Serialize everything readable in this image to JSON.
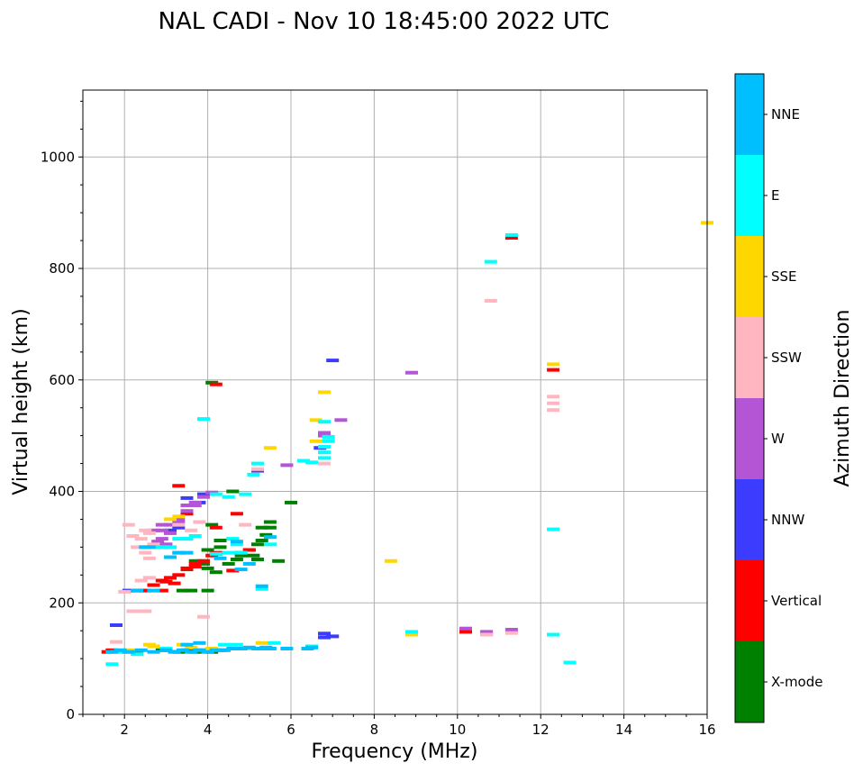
{
  "colors": {
    "X-mode": "#008000",
    "Vertical": "#ff0000",
    "NNW": "#3c3cff",
    "W": "#b455d6",
    "SSW": "#ffb6c1",
    "SSE": "#ffd700",
    "E": "#00ffff",
    "NNE": "#00bfff"
  },
  "chart_data": {
    "type": "scatter",
    "title": "NAL CADI - Nov 10 18:45:00 2022 UTC",
    "xlabel": "Frequency (MHz)",
    "ylabel": "Virtual height (km)",
    "xlim": [
      1,
      16
    ],
    "ylim": [
      0,
      1120
    ],
    "xticks": [
      2,
      4,
      6,
      8,
      10,
      12,
      14,
      16
    ],
    "yticks": [
      0,
      200,
      400,
      600,
      800,
      1000
    ],
    "grid": true,
    "colorbar": {
      "title": "Azimuth Direction",
      "categories": [
        "X-mode",
        "Vertical",
        "NNW",
        "W",
        "SSW",
        "SSE",
        "E",
        "NNE"
      ]
    },
    "series": [
      {
        "name": "X-mode",
        "points": [
          [
            3.3,
            112
          ],
          [
            3.5,
            115
          ],
          [
            3.7,
            112
          ],
          [
            3.9,
            115
          ],
          [
            4.1,
            112
          ],
          [
            4.3,
            115
          ],
          [
            2.3,
            112
          ],
          [
            2.9,
            115
          ],
          [
            4.2,
            255
          ],
          [
            4.0,
            262
          ],
          [
            4.5,
            270
          ],
          [
            4.7,
            278
          ],
          [
            4.8,
            285
          ],
          [
            5.0,
            295
          ],
          [
            5.2,
            305
          ],
          [
            5.3,
            312
          ],
          [
            5.4,
            322
          ],
          [
            5.5,
            335
          ],
          [
            5.5,
            345
          ],
          [
            4.2,
            288
          ],
          [
            4.0,
            295
          ],
          [
            3.9,
            275
          ],
          [
            3.7,
            275
          ],
          [
            3.5,
            260
          ],
          [
            4.3,
            300
          ],
          [
            4.3,
            312
          ],
          [
            4.8,
            290
          ],
          [
            5.1,
            285
          ],
          [
            5.3,
            335
          ],
          [
            4.0,
            222
          ],
          [
            3.6,
            222
          ],
          [
            3.4,
            222
          ],
          [
            4.1,
            340
          ],
          [
            4.1,
            595
          ],
          [
            5.7,
            275
          ],
          [
            6.0,
            380
          ],
          [
            4.6,
            400
          ],
          [
            5.2,
            278
          ],
          [
            3.9,
            270
          ]
        ]
      },
      {
        "name": "Vertical",
        "points": [
          [
            2.3,
            222
          ],
          [
            2.5,
            222
          ],
          [
            2.9,
            222
          ],
          [
            2.9,
            240
          ],
          [
            3.1,
            245
          ],
          [
            3.3,
            250
          ],
          [
            3.5,
            262
          ],
          [
            3.7,
            270
          ],
          [
            3.9,
            275
          ],
          [
            4.1,
            285
          ],
          [
            4.2,
            290
          ],
          [
            2.7,
            232
          ],
          [
            3.2,
            235
          ],
          [
            1.7,
            115
          ],
          [
            2.3,
            112
          ],
          [
            3.6,
            113
          ],
          [
            4.7,
            360
          ],
          [
            4.2,
            335
          ],
          [
            4.2,
            592
          ],
          [
            3.5,
            360
          ],
          [
            3.3,
            410
          ],
          [
            4.6,
            258
          ],
          [
            5.0,
            295
          ],
          [
            3.7,
            265
          ],
          [
            3.0,
            238
          ],
          [
            11.3,
            855
          ],
          [
            12.3,
            618
          ],
          [
            10.2,
            148
          ],
          [
            10.7,
            145
          ],
          [
            1.6,
            112
          ]
        ]
      },
      {
        "name": "NNW",
        "points": [
          [
            6.8,
            138
          ],
          [
            6.8,
            145
          ],
          [
            7.0,
            140
          ],
          [
            6.7,
            478
          ],
          [
            7.0,
            635
          ],
          [
            5.2,
            437
          ],
          [
            3.1,
            330
          ],
          [
            3.3,
            335
          ],
          [
            2.1,
            222
          ],
          [
            3.9,
            395
          ],
          [
            1.8,
            160
          ],
          [
            3.5,
            388
          ],
          [
            3.8,
            380
          ]
        ]
      },
      {
        "name": "W",
        "points": [
          [
            2.7,
            330
          ],
          [
            2.9,
            330
          ],
          [
            3.1,
            325
          ],
          [
            2.9,
            340
          ],
          [
            3.1,
            340
          ],
          [
            3.3,
            345
          ],
          [
            2.9,
            315
          ],
          [
            3.0,
            305
          ],
          [
            3.3,
            350
          ],
          [
            3.5,
            365
          ],
          [
            3.5,
            375
          ],
          [
            3.7,
            375
          ],
          [
            3.7,
            380
          ],
          [
            3.9,
            390
          ],
          [
            4.1,
            398
          ],
          [
            2.8,
            310
          ],
          [
            5.9,
            447
          ],
          [
            7.2,
            528
          ],
          [
            6.8,
            500
          ],
          [
            8.9,
            613
          ],
          [
            11.3,
            152
          ],
          [
            10.2,
            154
          ],
          [
            6.8,
            505
          ],
          [
            10.7,
            148
          ]
        ]
      },
      {
        "name": "SSW",
        "points": [
          [
            2.2,
            320
          ],
          [
            2.3,
            300
          ],
          [
            2.4,
            315
          ],
          [
            2.5,
            330
          ],
          [
            2.6,
            325
          ],
          [
            2.5,
            300
          ],
          [
            2.6,
            280
          ],
          [
            2.5,
            290
          ],
          [
            2.7,
            305
          ],
          [
            2.2,
            185
          ],
          [
            2.5,
            185
          ],
          [
            2.4,
            240
          ],
          [
            2.6,
            245
          ],
          [
            1.8,
            130
          ],
          [
            3.9,
            175
          ],
          [
            6.8,
            470
          ],
          [
            6.8,
            450
          ],
          [
            6.9,
            495
          ],
          [
            10.8,
            742
          ],
          [
            12.3,
            570
          ],
          [
            12.3,
            558
          ],
          [
            12.3,
            546
          ],
          [
            11.3,
            146
          ],
          [
            10.7,
            143
          ],
          [
            3.6,
            330
          ],
          [
            3.8,
            345
          ],
          [
            3.3,
            340
          ],
          [
            2.0,
            220
          ],
          [
            5.2,
            440
          ],
          [
            4.9,
            340
          ],
          [
            2.1,
            340
          ]
        ]
      },
      {
        "name": "SSE",
        "points": [
          [
            3.1,
            350
          ],
          [
            3.3,
            355
          ],
          [
            2.9,
            300
          ],
          [
            2.6,
            125
          ],
          [
            3.4,
            125
          ],
          [
            5.5,
            478
          ],
          [
            6.6,
            490
          ],
          [
            6.6,
            528
          ],
          [
            6.8,
            578
          ],
          [
            8.4,
            275
          ],
          [
            12.3,
            628
          ],
          [
            8.9,
            143
          ],
          [
            16,
            882
          ],
          [
            1.8,
            112
          ],
          [
            5.3,
            128
          ],
          [
            2.1,
            115
          ],
          [
            4.1,
            118
          ],
          [
            3.6,
            120
          ],
          [
            4.9,
            118
          ],
          [
            2.7,
            122
          ]
        ]
      },
      {
        "name": "E",
        "points": [
          [
            3.9,
            530
          ],
          [
            5.2,
            450
          ],
          [
            5.1,
            430
          ],
          [
            6.3,
            455
          ],
          [
            6.5,
            452
          ],
          [
            6.8,
            460
          ],
          [
            6.8,
            470
          ],
          [
            6.8,
            480
          ],
          [
            6.9,
            490
          ],
          [
            6.9,
            498
          ],
          [
            6.8,
            525
          ],
          [
            4.2,
            395
          ],
          [
            4.5,
            390
          ],
          [
            4.9,
            395
          ],
          [
            3.5,
            315
          ],
          [
            3.7,
            320
          ],
          [
            3.3,
            315
          ],
          [
            3.1,
            300
          ],
          [
            2.9,
            300
          ],
          [
            3.3,
            290
          ],
          [
            4.6,
            315
          ],
          [
            4.7,
            305
          ],
          [
            4.8,
            290
          ],
          [
            12.3,
            332
          ],
          [
            12.3,
            143
          ],
          [
            12.7,
            93
          ],
          [
            11.3,
            860
          ],
          [
            10.8,
            812
          ],
          [
            8.9,
            148
          ],
          [
            2.0,
            112
          ],
          [
            2.3,
            108
          ],
          [
            3.0,
            118
          ],
          [
            5.3,
            225
          ],
          [
            1.7,
            90
          ],
          [
            4.4,
            125
          ],
          [
            4.7,
            125
          ],
          [
            5.6,
            128
          ],
          [
            6.5,
            122
          ],
          [
            4.5,
            290
          ],
          [
            4.2,
            288
          ],
          [
            5.5,
            305
          ]
        ]
      },
      {
        "name": "NNE",
        "points": [
          [
            1.7,
            112
          ],
          [
            1.9,
            115
          ],
          [
            2.1,
            112
          ],
          [
            2.4,
            115
          ],
          [
            2.7,
            112
          ],
          [
            3.0,
            115
          ],
          [
            3.2,
            112
          ],
          [
            3.4,
            115
          ],
          [
            3.6,
            112
          ],
          [
            3.8,
            115
          ],
          [
            4.0,
            112
          ],
          [
            4.2,
            115
          ],
          [
            4.4,
            115
          ],
          [
            4.6,
            118
          ],
          [
            4.8,
            118
          ],
          [
            5.0,
            120
          ],
          [
            5.2,
            118
          ],
          [
            5.4,
            120
          ],
          [
            5.5,
            118
          ],
          [
            5.9,
            118
          ],
          [
            6.4,
            118
          ],
          [
            6.5,
            120
          ],
          [
            3.5,
            125
          ],
          [
            3.8,
            128
          ],
          [
            4.8,
            260
          ],
          [
            5.0,
            270
          ],
          [
            4.7,
            310
          ],
          [
            4.3,
            280
          ],
          [
            2.6,
            300
          ],
          [
            2.3,
            222
          ],
          [
            2.7,
            222
          ],
          [
            3.1,
            282
          ],
          [
            3.3,
            290
          ],
          [
            3.5,
            290
          ],
          [
            2.5,
            300
          ],
          [
            5.5,
            318
          ],
          [
            5.3,
            230
          ]
        ]
      }
    ]
  }
}
